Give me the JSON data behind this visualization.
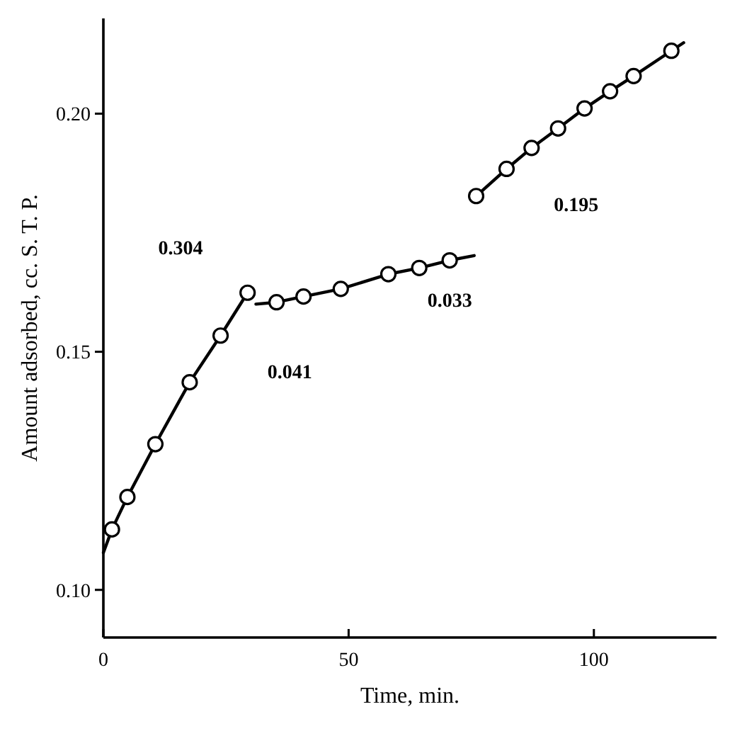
{
  "chart_data": {
    "type": "line",
    "xlabel": "Time, min.",
    "ylabel": "Amount adsorbed, cc. S. T. P.",
    "xlim": [
      0,
      125
    ],
    "ylim": [
      0.09,
      0.22
    ],
    "xticks": [
      0,
      50,
      100
    ],
    "yticks": [
      {
        "value": 0.1,
        "label": "0.10"
      },
      {
        "value": 0.15,
        "label": "0.15"
      },
      {
        "value": 0.2,
        "label": "0.20"
      }
    ],
    "grid": false,
    "series": [
      {
        "color": "#000000",
        "marker": "none",
        "x": [
          0,
          1.75,
          4.9,
          10.6,
          17.6,
          23.9,
          29.4
        ],
        "values": [
          0.1078,
          0.1127,
          0.1195,
          0.1306,
          0.1436,
          0.1534,
          0.1624
        ]
      },
      {
        "color": "#000000",
        "marker": "none",
        "x": [
          31.1,
          35.3,
          40.8,
          48.4,
          58.1,
          64.4,
          70.6,
          75.6
        ],
        "values": [
          0.16,
          0.1604,
          0.1616,
          0.1632,
          0.1663,
          0.1676,
          0.1692,
          0.1702
        ]
      },
      {
        "color": "#000000",
        "marker": "none",
        "x": [
          76.0,
          82.2,
          87.3,
          92.7,
          98.1,
          103.3,
          108.1,
          115.8,
          118.3
        ],
        "values": [
          0.1827,
          0.1884,
          0.1928,
          0.1969,
          0.2011,
          0.2047,
          0.2079,
          0.2132,
          0.2149
        ]
      },
      {
        "type": "scatter",
        "color": "#000000",
        "marker": "circle",
        "x": [
          1.75,
          4.9,
          10.6,
          17.6,
          23.9,
          29.4,
          35.3,
          40.8,
          48.4,
          58.1,
          64.4,
          70.6,
          76.0,
          82.2,
          87.3,
          92.7,
          98.1,
          103.3,
          108.1,
          115.8
        ],
        "values": [
          0.1127,
          0.1195,
          0.1306,
          0.1436,
          0.1534,
          0.1624,
          0.1604,
          0.1616,
          0.1632,
          0.1663,
          0.1676,
          0.1692,
          0.1827,
          0.1884,
          0.1928,
          0.1969,
          0.2011,
          0.2047,
          0.2079,
          0.2132
        ]
      }
    ],
    "annotations": [
      "0.304",
      "0.041",
      "0.033",
      "0.195"
    ]
  }
}
